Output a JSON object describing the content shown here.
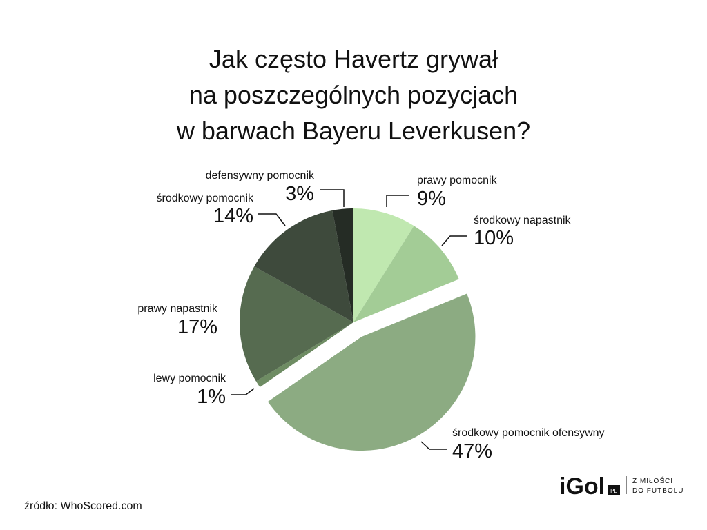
{
  "chart_data": {
    "type": "pie",
    "title": [
      "Jak często Havertz grywał",
      "na poszczególnych pozycjach",
      "w barwach Bayeru Leverkusen?"
    ],
    "categories": [
      "prawy pomocnik",
      "środkowy napastnik",
      "środkowy pomocnik ofensywny",
      "lewy pomocnik",
      "prawy napastnik",
      "środkowy pomocnik",
      "defensywny pomocnik"
    ],
    "values": [
      9,
      10,
      47,
      1,
      17,
      14,
      3
    ],
    "value_labels": [
      "9%",
      "10%",
      "47%",
      "1%",
      "17%",
      "14%",
      "3%"
    ],
    "colors": [
      "#c0e8b0",
      "#a3cc96",
      "#8cab82",
      "#6e8c63",
      "#566b50",
      "#3e4a3c",
      "#252c25"
    ],
    "exploded": [
      false,
      false,
      true,
      false,
      false,
      false,
      false
    ]
  },
  "source": "źródło: WhoScored.com",
  "logo": {
    "name": "iGol",
    "badge": "PL",
    "tagline": [
      "Z MIŁOŚCI",
      "DO FUTBOLU"
    ]
  }
}
